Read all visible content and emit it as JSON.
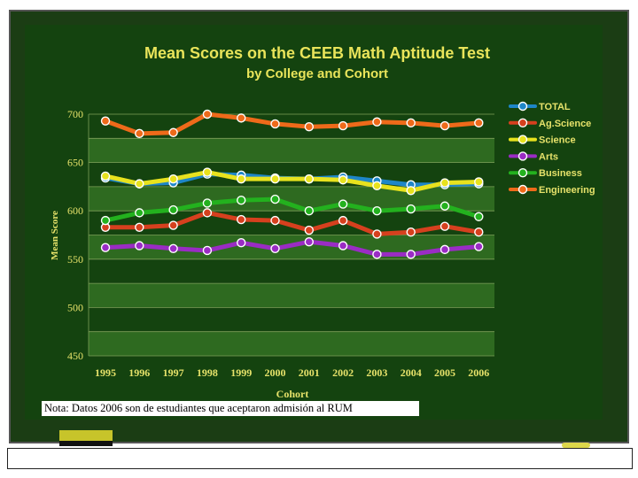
{
  "note": "Nota:  Datos 2006 son de estudiantes que aceptaron admisión al RUM",
  "colors": {
    "background": "#14430f",
    "band": "#2e6a20",
    "title": "#e9e45a",
    "axis_text": "#e6e26a"
  },
  "chart_data": {
    "type": "line",
    "title": "Mean Scores on the CEEB Math Aptitude Test",
    "subtitle": "by College and Cohort",
    "xlabel": "Cohort",
    "ylabel": "Mean Score",
    "x": [
      "1995",
      "1996",
      "1997",
      "1998",
      "1999",
      "2000",
      "2001",
      "2002",
      "2003",
      "2004",
      "2005",
      "2006"
    ],
    "ylim": [
      450,
      700
    ],
    "yticks": [
      450,
      500,
      550,
      600,
      650,
      700
    ],
    "legend_position": "right",
    "series": [
      {
        "name": "TOTAL",
        "color": "#1e86c8",
        "values": [
          634,
          628,
          629,
          638,
          637,
          634,
          633,
          635,
          631,
          627,
          627,
          628
        ]
      },
      {
        "name": "Ag.Science",
        "color": "#d6401e",
        "values": [
          583,
          583,
          585,
          598,
          591,
          590,
          580,
          590,
          576,
          578,
          584,
          578
        ]
      },
      {
        "name": "Science",
        "color": "#e8e21e",
        "values": [
          636,
          628,
          633,
          640,
          633,
          633,
          633,
          632,
          626,
          621,
          629,
          630
        ]
      },
      {
        "name": "Arts",
        "color": "#9a2cc4",
        "values": [
          562,
          564,
          561,
          559,
          567,
          561,
          568,
          564,
          555,
          555,
          560,
          563
        ]
      },
      {
        "name": "Business",
        "color": "#23b11e",
        "values": [
          590,
          598,
          601,
          608,
          611,
          612,
          600,
          607,
          600,
          602,
          605,
          594
        ]
      },
      {
        "name": "Engineering",
        "color": "#ee6a1a",
        "values": [
          693,
          680,
          681,
          700,
          696,
          690,
          687,
          688,
          692,
          691,
          688,
          691
        ]
      }
    ]
  }
}
